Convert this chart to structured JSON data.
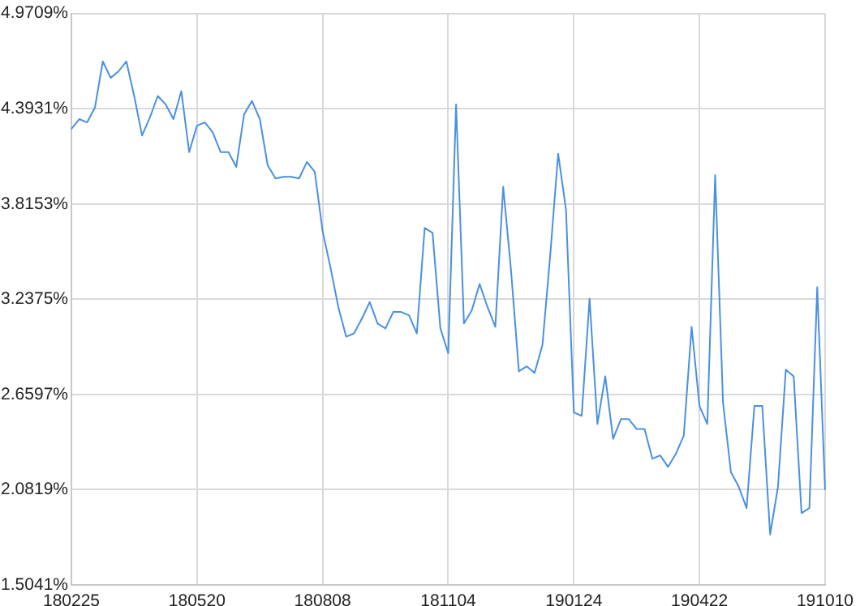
{
  "chart_data": {
    "type": "line",
    "categories": [
      "180225",
      null,
      null,
      null,
      null,
      null,
      null,
      null,
      null,
      null,
      null,
      null,
      null,
      null,
      null,
      null,
      "180520",
      null,
      null,
      null,
      null,
      null,
      null,
      null,
      null,
      null,
      null,
      null,
      null,
      null,
      null,
      null,
      "180808",
      null,
      null,
      null,
      null,
      null,
      null,
      null,
      null,
      null,
      null,
      null,
      null,
      null,
      null,
      null,
      "181104",
      null,
      null,
      null,
      null,
      null,
      null,
      null,
      null,
      null,
      null,
      null,
      null,
      null,
      null,
      null,
      "190124",
      null,
      null,
      null,
      null,
      null,
      null,
      null,
      null,
      null,
      null,
      null,
      null,
      null,
      null,
      null,
      "190422",
      null,
      null,
      null,
      null,
      null,
      null,
      null,
      null,
      null,
      null,
      null,
      null,
      null,
      null,
      null,
      "191010"
    ],
    "series": [
      {
        "color": "#4a90e2",
        "values": [
          4.27,
          4.33,
          4.31,
          4.4,
          4.68,
          4.58,
          4.62,
          4.68,
          4.47,
          4.23,
          4.34,
          4.47,
          4.42,
          4.33,
          4.5,
          4.13,
          4.29,
          4.31,
          4.25,
          4.13,
          4.13,
          4.04,
          4.36,
          4.44,
          4.33,
          4.05,
          3.97,
          3.98,
          3.98,
          3.97,
          4.07,
          4.01,
          3.65,
          3.43,
          3.19,
          3.01,
          3.03,
          3.12,
          3.22,
          3.09,
          3.06,
          3.16,
          3.16,
          3.14,
          3.03,
          3.67,
          3.64,
          3.06,
          2.91,
          4.42,
          3.09,
          3.17,
          3.33,
          3.19,
          3.07,
          3.92,
          3.41,
          2.8,
          2.83,
          2.79,
          2.96,
          3.51,
          4.12,
          3.78,
          2.55,
          2.53,
          3.24,
          2.48,
          2.77,
          2.39,
          2.51,
          2.51,
          2.45,
          2.45,
          2.27,
          2.29,
          2.22,
          2.3,
          2.41,
          3.07,
          2.59,
          2.48,
          3.99,
          2.61,
          2.19,
          2.1,
          1.97,
          2.59,
          2.59,
          1.81,
          2.1,
          2.81,
          2.77,
          1.94,
          1.97,
          3.31,
          2.08
        ]
      }
    ],
    "ylim": [
      1.5041,
      4.9709
    ],
    "yticks": [
      {
        "value": 1.5041,
        "label": "1.5041%"
      },
      {
        "value": 2.0819,
        "label": "2.0819%"
      },
      {
        "value": 2.6597,
        "label": "2.6597%"
      },
      {
        "value": 3.2375,
        "label": "3.2375%"
      },
      {
        "value": 3.8153,
        "label": "3.8153%"
      },
      {
        "value": 4.3931,
        "label": "4.3931%"
      },
      {
        "value": 4.9709,
        "label": "4.9709%"
      }
    ],
    "grid": true,
    "legend": false,
    "marker": "none",
    "line_style": "solid"
  }
}
